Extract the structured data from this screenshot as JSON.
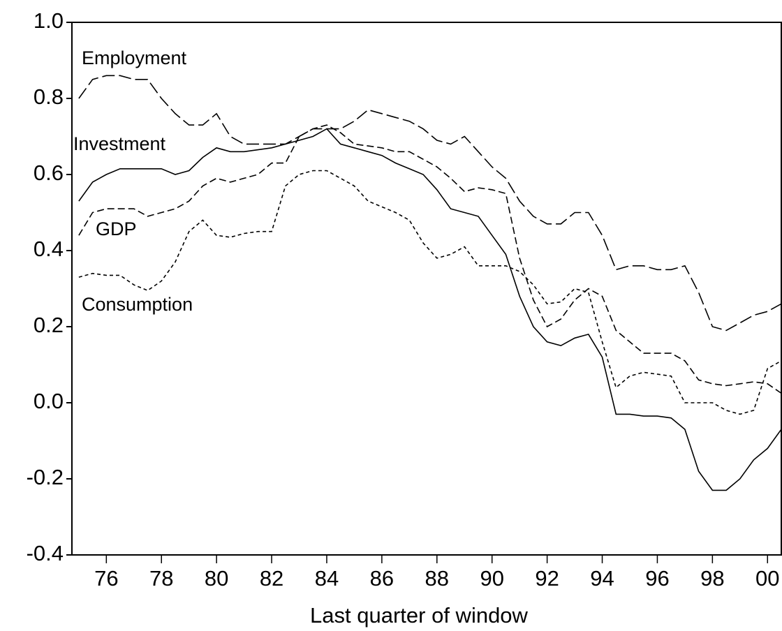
{
  "chart_data": {
    "type": "line",
    "x_label": "Last quarter of window",
    "annotations": [
      "Employment",
      "Investment",
      "GDP",
      "Consumption"
    ],
    "x": [
      1975.0,
      1975.5,
      1976.0,
      1976.5,
      1977.0,
      1977.5,
      1978.0,
      1978.5,
      1979.0,
      1979.5,
      1980.0,
      1980.5,
      1981.0,
      1981.5,
      1982.0,
      1982.5,
      1983.0,
      1983.5,
      1984.0,
      1984.5,
      1985.0,
      1985.5,
      1986.0,
      1986.5,
      1987.0,
      1987.5,
      1988.0,
      1988.5,
      1989.0,
      1989.5,
      1990.0,
      1990.5,
      1991.0,
      1991.5,
      1992.0,
      1992.5,
      1993.0,
      1993.5,
      1994.0,
      1994.5,
      1995.0,
      1995.5,
      1996.0,
      1996.5,
      1997.0,
      1997.5,
      1998.0,
      1998.5,
      1999.0,
      1999.5,
      2000.0,
      2000.5
    ],
    "series": [
      {
        "name": "Employment",
        "color": "#000000",
        "dash": "18 6",
        "values": [
          0.8,
          0.85,
          0.86,
          0.86,
          0.85,
          0.85,
          0.8,
          0.76,
          0.73,
          0.73,
          0.76,
          0.7,
          0.68,
          0.68,
          0.68,
          0.68,
          0.7,
          0.72,
          0.72,
          0.72,
          0.74,
          0.77,
          0.76,
          0.75,
          0.74,
          0.72,
          0.69,
          0.68,
          0.7,
          0.66,
          0.62,
          0.59,
          0.53,
          0.49,
          0.47,
          0.47,
          0.5,
          0.5,
          0.44,
          0.35,
          0.36,
          0.36,
          0.35,
          0.35,
          0.36,
          0.29,
          0.2,
          0.19,
          0.21,
          0.23,
          0.24,
          0.26
        ]
      },
      {
        "name": "Investment",
        "color": "#000000",
        "dash": "none",
        "values": [
          0.53,
          0.58,
          0.6,
          0.615,
          0.615,
          0.615,
          0.615,
          0.6,
          0.61,
          0.645,
          0.67,
          0.66,
          0.66,
          0.665,
          0.67,
          0.68,
          0.69,
          0.7,
          0.72,
          0.68,
          0.67,
          0.66,
          0.65,
          0.63,
          0.615,
          0.6,
          0.56,
          0.51,
          0.5,
          0.49,
          0.44,
          0.39,
          0.28,
          0.2,
          0.16,
          0.15,
          0.17,
          0.18,
          0.12,
          -0.03,
          -0.03,
          -0.035,
          -0.035,
          -0.04,
          -0.07,
          -0.18,
          -0.23,
          -0.23,
          -0.2,
          -0.15,
          -0.12,
          -0.07
        ]
      },
      {
        "name": "GDP",
        "color": "#000000",
        "dash": "10 5",
        "values": [
          0.44,
          0.5,
          0.51,
          0.51,
          0.51,
          0.49,
          0.5,
          0.51,
          0.53,
          0.57,
          0.59,
          0.58,
          0.59,
          0.6,
          0.63,
          0.63,
          0.7,
          0.72,
          0.73,
          0.71,
          0.68,
          0.675,
          0.67,
          0.66,
          0.66,
          0.64,
          0.62,
          0.59,
          0.555,
          0.565,
          0.56,
          0.55,
          0.38,
          0.27,
          0.2,
          0.22,
          0.27,
          0.3,
          0.28,
          0.19,
          0.16,
          0.13,
          0.13,
          0.13,
          0.11,
          0.06,
          0.05,
          0.045,
          0.05,
          0.055,
          0.05,
          0.025
        ]
      },
      {
        "name": "Consumption",
        "color": "#000000",
        "dash": "5 4",
        "values": [
          0.33,
          0.34,
          0.335,
          0.335,
          0.31,
          0.295,
          0.32,
          0.37,
          0.45,
          0.48,
          0.44,
          0.435,
          0.445,
          0.45,
          0.45,
          0.57,
          0.6,
          0.61,
          0.61,
          0.59,
          0.57,
          0.53,
          0.515,
          0.5,
          0.48,
          0.42,
          0.38,
          0.39,
          0.41,
          0.36,
          0.36,
          0.36,
          0.345,
          0.31,
          0.26,
          0.265,
          0.3,
          0.29,
          0.16,
          0.04,
          0.07,
          0.08,
          0.075,
          0.07,
          0.0,
          0.0,
          0.0,
          -0.02,
          -0.03,
          -0.02,
          0.09,
          0.11
        ]
      }
    ],
    "xlim": [
      1974.75,
      2000.5
    ],
    "xticks": [
      {
        "value": 1976,
        "label": "76"
      },
      {
        "value": 1978,
        "label": "78"
      },
      {
        "value": 1980,
        "label": "80"
      },
      {
        "value": 1982,
        "label": "82"
      },
      {
        "value": 1984,
        "label": "84"
      },
      {
        "value": 1986,
        "label": "86"
      },
      {
        "value": 1988,
        "label": "88"
      },
      {
        "value": 1990,
        "label": "90"
      },
      {
        "value": 1992,
        "label": "92"
      },
      {
        "value": 1994,
        "label": "94"
      },
      {
        "value": 1996,
        "label": "96"
      },
      {
        "value": 1998,
        "label": "98"
      },
      {
        "value": 2000,
        "label": "00"
      }
    ],
    "ylim": [
      -0.4,
      1.0
    ],
    "yticks": [
      {
        "value": -0.4,
        "label": "-0.4"
      },
      {
        "value": -0.2,
        "label": "-0.2"
      },
      {
        "value": 0,
        "label": "0.0"
      },
      {
        "value": 0.2,
        "label": "0.2"
      },
      {
        "value": 0.4,
        "label": "0.4"
      },
      {
        "value": 0.6,
        "label": "0.6"
      },
      {
        "value": 0.8,
        "label": "0.8"
      },
      {
        "value": 1.0,
        "label": "1.0"
      }
    ],
    "grid": false
  }
}
